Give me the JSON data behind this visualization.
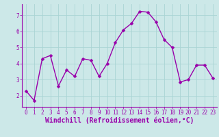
{
  "x": [
    0,
    1,
    2,
    3,
    4,
    5,
    6,
    7,
    8,
    9,
    10,
    11,
    12,
    13,
    14,
    15,
    16,
    17,
    18,
    19,
    20,
    21,
    22,
    23
  ],
  "y": [
    2.3,
    1.7,
    4.3,
    4.5,
    2.6,
    3.6,
    3.2,
    4.3,
    4.2,
    3.2,
    4.0,
    5.3,
    6.1,
    6.5,
    7.25,
    7.2,
    6.6,
    5.5,
    5.0,
    2.85,
    3.0,
    3.9,
    3.9,
    3.1
  ],
  "line_color": "#9900aa",
  "marker_color": "#9900aa",
  "bg_color": "#cce8e8",
  "grid_color": "#aad4d4",
  "xlabel": "Windchill (Refroidissement éolien,°C)",
  "xlabel_color": "#9900aa",
  "tick_color": "#9900aa",
  "ylim": [
    1.3,
    7.7
  ],
  "xlim": [
    -0.5,
    23.5
  ],
  "yticks": [
    2,
    3,
    4,
    5,
    6,
    7
  ],
  "xticks": [
    0,
    1,
    2,
    3,
    4,
    5,
    6,
    7,
    8,
    9,
    10,
    11,
    12,
    13,
    14,
    15,
    16,
    17,
    18,
    19,
    20,
    21,
    22,
    23
  ],
  "spine_color": "#9900aa",
  "marker_size": 2.5,
  "line_width": 1.0,
  "tick_fontsize": 5.5,
  "ylabel_fontsize": 6.5,
  "xlabel_fontsize": 7.0
}
